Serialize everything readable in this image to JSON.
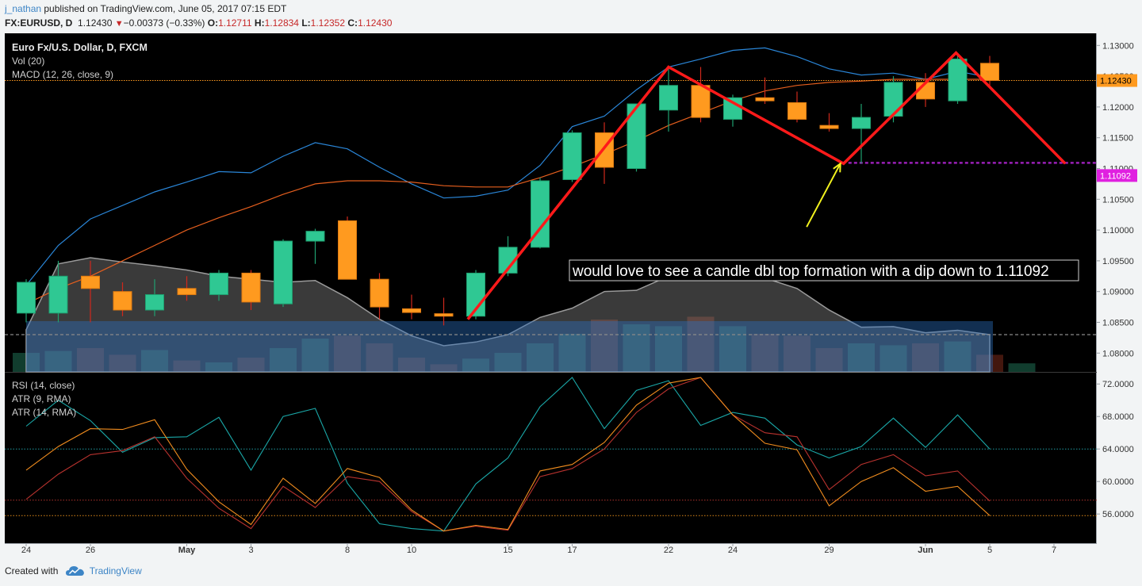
{
  "header": {
    "author": "j_nathan",
    "published": " published on TradingView.com, June 05, 2017 07:15 EDT",
    "symbol": "FX:EURUSD, D",
    "last": "1.12430",
    "change": "−0.00373 (−0.33%)",
    "o_label": "O:",
    "o_value": "1.12711",
    "h_label": "H:",
    "h_value": "1.12834",
    "l_label": "L:",
    "l_value": "1.12352",
    "c_label": "C:",
    "c_value": "1.12430"
  },
  "footer": {
    "created_with": "Created with",
    "brand": "TradingView"
  },
  "colors": {
    "background": "#000000",
    "frame": "#f2f4f5",
    "up": "#2fc893",
    "down": "#ff9a1f",
    "bb_line": "#2a86d8",
    "bb_mid": "#e65f1e",
    "trend": "#ff1a1a",
    "arrow": "#f2f21e",
    "target": "#9a1fb8",
    "price_tag": "#ff9a1f",
    "target_tag": "#e020e0"
  },
  "chart_data": [
    {
      "type": "candlestick",
      "title": "Euro Fx/U.S. Dollar, D, FXCM",
      "legend": [
        "Euro Fx/U.S. Dollar, D, FXCM",
        "Vol (20)",
        "MACD (12, 26, close, 9)"
      ],
      "y_ticks": [
        "1.13000",
        "1.12500",
        "1.12000",
        "1.11500",
        "1.11000",
        "1.10500",
        "1.10000",
        "1.09500",
        "1.09000",
        "1.08500",
        "1.08000"
      ],
      "ylim": [
        1.0772,
        1.1312
      ],
      "x_ticks": [
        {
          "label": "24",
          "i": 0
        },
        {
          "label": "26",
          "i": 2
        },
        {
          "label": "May",
          "i": 5
        },
        {
          "label": "3",
          "i": 7
        },
        {
          "label": "8",
          "i": 10
        },
        {
          "label": "10",
          "i": 12
        },
        {
          "label": "15",
          "i": 15
        },
        {
          "label": "17",
          "i": 17
        },
        {
          "label": "22",
          "i": 20
        },
        {
          "label": "24",
          "i": 22
        },
        {
          "label": "29",
          "i": 25
        },
        {
          "label": "Jun",
          "i": 28
        },
        {
          "label": "5",
          "i": 30
        },
        {
          "label": "7",
          "i": 32
        }
      ],
      "n_slots": 33.9,
      "candles": [
        {
          "o": 1.0865,
          "h": 1.092,
          "l": 1.085,
          "c": 1.0915
        },
        {
          "o": 1.0865,
          "h": 1.095,
          "l": 1.085,
          "c": 1.0925
        },
        {
          "o": 1.0925,
          "h": 1.095,
          "l": 1.085,
          "c": 1.0905
        },
        {
          "o": 1.09,
          "h": 1.0915,
          "l": 1.086,
          "c": 1.087
        },
        {
          "o": 1.087,
          "h": 1.092,
          "l": 1.086,
          "c": 1.0895
        },
        {
          "o": 1.0905,
          "h": 1.0925,
          "l": 1.0885,
          "c": 1.0895
        },
        {
          "o": 1.0895,
          "h": 1.0935,
          "l": 1.0885,
          "c": 1.093
        },
        {
          "o": 1.093,
          "h": 1.0935,
          "l": 1.087,
          "c": 1.0883
        },
        {
          "o": 1.088,
          "h": 1.0985,
          "l": 1.0875,
          "c": 1.0982
        },
        {
          "o": 1.0982,
          "h": 1.1002,
          "l": 1.0945,
          "c": 1.0998
        },
        {
          "o": 1.1015,
          "h": 1.1022,
          "l": 1.092,
          "c": 1.092
        },
        {
          "o": 1.092,
          "h": 1.093,
          "l": 1.0855,
          "c": 1.0875
        },
        {
          "o": 1.0872,
          "h": 1.0895,
          "l": 1.0855,
          "c": 1.0866
        },
        {
          "o": 1.0864,
          "h": 1.089,
          "l": 1.0845,
          "c": 1.086
        },
        {
          "o": 1.086,
          "h": 1.0935,
          "l": 1.0855,
          "c": 1.093
        },
        {
          "o": 1.093,
          "h": 1.099,
          "l": 1.0925,
          "c": 1.0972
        },
        {
          "o": 1.0972,
          "h": 1.1085,
          "l": 1.097,
          "c": 1.108
        },
        {
          "o": 1.1082,
          "h": 1.1162,
          "l": 1.1078,
          "c": 1.1158
        },
        {
          "o": 1.1158,
          "h": 1.1175,
          "l": 1.1075,
          "c": 1.1102
        },
        {
          "o": 1.11,
          "h": 1.1205,
          "l": 1.1095,
          "c": 1.1205
        },
        {
          "o": 1.1195,
          "h": 1.1265,
          "l": 1.116,
          "c": 1.1235
        },
        {
          "o": 1.1235,
          "h": 1.1265,
          "l": 1.1175,
          "c": 1.1183
        },
        {
          "o": 1.118,
          "h": 1.122,
          "l": 1.1168,
          "c": 1.1215
        },
        {
          "o": 1.1215,
          "h": 1.1248,
          "l": 1.1205,
          "c": 1.121
        },
        {
          "o": 1.1207,
          "h": 1.1225,
          "l": 1.1175,
          "c": 1.118
        },
        {
          "o": 1.117,
          "h": 1.119,
          "l": 1.116,
          "c": 1.1165
        },
        {
          "o": 1.1165,
          "h": 1.1205,
          "l": 1.1108,
          "c": 1.1183
        },
        {
          "o": 1.1185,
          "h": 1.125,
          "l": 1.1175,
          "c": 1.124
        },
        {
          "o": 1.124,
          "h": 1.1255,
          "l": 1.12,
          "c": 1.1213
        },
        {
          "o": 1.121,
          "h": 1.1285,
          "l": 1.1205,
          "c": 1.1278
        },
        {
          "o": 1.1271,
          "h": 1.1283,
          "l": 1.1235,
          "c": 1.1243
        }
      ],
      "bb_upper": [
        [
          0,
          1.091
        ],
        [
          1,
          1.0975
        ],
        [
          2,
          1.1018
        ],
        [
          3,
          1.104
        ],
        [
          4,
          1.1062
        ],
        [
          5,
          1.1078
        ],
        [
          6,
          1.1095
        ],
        [
          7,
          1.1093
        ],
        [
          8,
          1.112
        ],
        [
          9,
          1.1142
        ],
        [
          10,
          1.1132
        ],
        [
          11,
          1.1102
        ],
        [
          12,
          1.1075
        ],
        [
          13,
          1.1052
        ],
        [
          14,
          1.1055
        ],
        [
          15,
          1.1065
        ],
        [
          16,
          1.1105
        ],
        [
          17,
          1.1168
        ],
        [
          18,
          1.1185
        ],
        [
          19,
          1.1228
        ],
        [
          20,
          1.1265
        ],
        [
          21,
          1.1278
        ],
        [
          22,
          1.1292
        ],
        [
          23,
          1.1296
        ],
        [
          24,
          1.1282
        ],
        [
          25,
          1.1262
        ],
        [
          26,
          1.1252
        ],
        [
          27,
          1.1255
        ],
        [
          28,
          1.1245
        ],
        [
          29,
          1.1258
        ],
        [
          30,
          1.1248
        ]
      ],
      "bb_mid": [
        [
          0,
          1.088
        ],
        [
          1,
          1.0905
        ],
        [
          2,
          1.0925
        ],
        [
          3,
          1.095
        ],
        [
          4,
          1.0975
        ],
        [
          5,
          1.1
        ],
        [
          6,
          1.102
        ],
        [
          7,
          1.1038
        ],
        [
          8,
          1.1058
        ],
        [
          9,
          1.1075
        ],
        [
          10,
          1.108
        ],
        [
          11,
          1.108
        ],
        [
          12,
          1.1078
        ],
        [
          13,
          1.1072
        ],
        [
          14,
          1.107
        ],
        [
          15,
          1.107
        ],
        [
          16,
          1.1085
        ],
        [
          17,
          1.1103
        ],
        [
          18,
          1.1123
        ],
        [
          19,
          1.1145
        ],
        [
          20,
          1.117
        ],
        [
          21,
          1.119
        ],
        [
          22,
          1.121
        ],
        [
          23,
          1.1226
        ],
        [
          24,
          1.1235
        ],
        [
          25,
          1.124
        ],
        [
          26,
          1.1242
        ],
        [
          27,
          1.1245
        ],
        [
          28,
          1.1245
        ],
        [
          29,
          1.1245
        ],
        [
          30,
          1.1245
        ]
      ],
      "volume": [
        0.2,
        0.22,
        0.25,
        0.18,
        0.23,
        0.12,
        0.1,
        0.15,
        0.25,
        0.35,
        0.38,
        0.3,
        0.15,
        0.08,
        0.14,
        0.2,
        0.3,
        0.4,
        0.55,
        0.5,
        0.48,
        0.58,
        0.48,
        0.4,
        0.38,
        0.25,
        0.3,
        0.28,
        0.3,
        0.32,
        0.18,
        0.09
      ],
      "gray_area": [
        [
          0,
          1.0838
        ],
        [
          1,
          1.0945
        ],
        [
          2,
          1.0955
        ],
        [
          3,
          1.0948
        ],
        [
          4,
          1.0942
        ],
        [
          5,
          1.0935
        ],
        [
          6,
          1.0925
        ],
        [
          7,
          1.092
        ],
        [
          8,
          1.0915
        ],
        [
          9,
          1.0918
        ],
        [
          10,
          1.089
        ],
        [
          11,
          1.0855
        ],
        [
          12,
          1.0828
        ],
        [
          13,
          1.0812
        ],
        [
          14,
          1.0818
        ],
        [
          15,
          1.083
        ],
        [
          16,
          1.0858
        ],
        [
          17,
          1.0873
        ],
        [
          18,
          1.09
        ],
        [
          19,
          1.0902
        ],
        [
          20,
          1.0925
        ],
        [
          21,
          1.0942
        ],
        [
          22,
          1.093
        ],
        [
          23,
          1.0922
        ],
        [
          24,
          1.0905
        ],
        [
          25,
          1.087
        ],
        [
          26,
          1.0842
        ],
        [
          27,
          1.0843
        ],
        [
          28,
          1.0833
        ],
        [
          29,
          1.0837
        ],
        [
          30,
          1.083
        ]
      ],
      "blue_area_top": 1.0852,
      "gray_dashed": 1.083,
      "price_line": {
        "value": 1.1243,
        "label": "1.12430"
      },
      "target_line": {
        "value": 1.11092,
        "label": "1.11092",
        "from_i": 25.6
      },
      "trend_lines": [
        {
          "points": [
            [
              13.75,
              1.0855
            ],
            [
              20.0,
              1.1265
            ],
            [
              25.45,
              1.1108
            ],
            [
              28.95,
              1.1288
            ],
            [
              32.35,
              1.1108
            ]
          ]
        }
      ],
      "arrow": {
        "from": [
          24.3,
          1.1005
        ],
        "to": [
          25.35,
          1.1108
        ]
      },
      "annotation": "would love to see a candle dbl top formation with a dip down to 1.11092"
    },
    {
      "type": "line",
      "legend": [
        "RSI (14, close)",
        "ATR (9, RMA)",
        "ATR (14, RMA)"
      ],
      "y_ticks": [
        "72.0000",
        "68.0000",
        "64.0000",
        "60.0000",
        "56.0000"
      ],
      "ylim": [
        52.7,
        73.0
      ],
      "hlines": [
        {
          "value": 64.0,
          "color": "#1f9aa0"
        },
        {
          "value": 57.7,
          "color": "#b0322d"
        },
        {
          "value": 55.8,
          "color": "#e08a1a"
        }
      ],
      "series": [
        {
          "color": "#1aa7a7",
          "values": [
            66.8,
            70.0,
            67.5,
            63.6,
            65.4,
            65.5,
            67.9,
            61.4,
            68.0,
            69.0,
            59.8,
            54.8,
            54.2,
            53.9,
            59.7,
            62.9,
            69.2,
            72.8,
            66.5,
            71.2,
            72.4,
            66.9,
            68.5,
            67.8,
            64.5,
            62.9,
            64.3,
            67.8,
            64.2,
            68.2,
            64.0
          ]
        },
        {
          "color": "#b8322e",
          "values": [
            57.8,
            60.9,
            63.3,
            63.8,
            65.5,
            60.4,
            56.7,
            54.2,
            59.4,
            56.8,
            60.6,
            60.0,
            56.3,
            53.9,
            54.5,
            54.0,
            60.6,
            61.6,
            64.0,
            68.5,
            71.4,
            72.8,
            68.2,
            66.0,
            65.5,
            59.0,
            62.1,
            63.3,
            60.7,
            61.3,
            57.6
          ]
        },
        {
          "color": "#f08c1e",
          "values": [
            61.4,
            64.3,
            66.5,
            66.4,
            67.6,
            61.5,
            57.5,
            54.7,
            60.4,
            57.3,
            61.6,
            60.5,
            56.5,
            53.9,
            54.6,
            54.1,
            61.3,
            62.1,
            64.8,
            69.4,
            72.1,
            72.8,
            68.2,
            64.7,
            63.9,
            57.0,
            60.0,
            61.7,
            58.8,
            59.4,
            55.8
          ]
        }
      ]
    }
  ]
}
